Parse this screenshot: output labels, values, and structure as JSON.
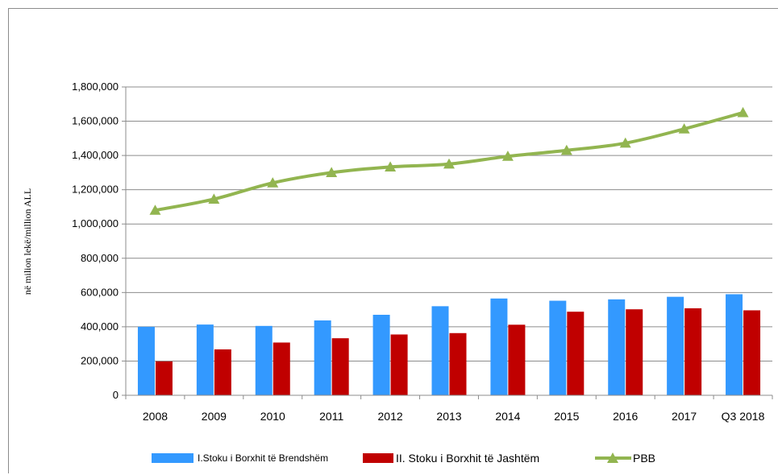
{
  "chart_data": {
    "type": "bar",
    "categories": [
      "2008",
      "2009",
      "2010",
      "2011",
      "2012",
      "2013",
      "2014",
      "2015",
      "2016",
      "2017",
      "Q3 2018"
    ],
    "series": [
      {
        "name": "I.Stoku i Borxhit të Brendshëm",
        "type": "bar",
        "color": "#3399ff",
        "values": [
          400000,
          413000,
          405000,
          437000,
          470000,
          520000,
          565000,
          552000,
          560000,
          575000,
          590000
        ]
      },
      {
        "name": "II. Stoku i Borxhit të Jashtëm",
        "type": "bar",
        "color": "#c00000",
        "values": [
          198000,
          268000,
          308000,
          333000,
          355000,
          363000,
          412000,
          488000,
          502000,
          508000,
          496000
        ]
      },
      {
        "name": "PBB",
        "type": "line",
        "color": "#92b550",
        "marker": "triangle",
        "values": [
          1080000,
          1145000,
          1240000,
          1300000,
          1333000,
          1350000,
          1395000,
          1430000,
          1472000,
          1555000,
          1650000
        ]
      }
    ],
    "ylabel": "në milion lekë/million ALL",
    "ylim": [
      0,
      1800000
    ],
    "yticks": [
      0,
      200000,
      400000,
      600000,
      800000,
      1000000,
      1200000,
      1400000,
      1600000,
      1800000
    ],
    "ytick_labels": [
      "0",
      "200,000",
      "400,000",
      "600,000",
      "800,000",
      "1,000,000",
      "1,200,000",
      "1,400,000",
      "1,600,000",
      "1,800,000"
    ],
    "grid": true,
    "legend_position": "bottom"
  }
}
